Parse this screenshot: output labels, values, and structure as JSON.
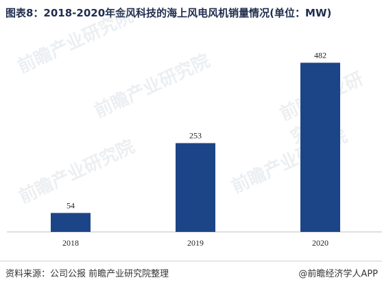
{
  "title": "图表8：2018-2020年金风科技的海上风电风机销量情况(单位：MW)",
  "footer": {
    "source": "资料来源：公司公报 前瞻产业研究院整理",
    "brand": "@前瞻经济学人APP"
  },
  "colors": {
    "bar": "#1c4587",
    "axis": "#bfbfbf",
    "label": "#222222"
  },
  "chart_data": {
    "type": "bar",
    "title": "图表8：2018-2020年金风科技的海上风电风机销量情况(单位：MW)",
    "categories": [
      "2018",
      "2019",
      "2020"
    ],
    "values": [
      54,
      253,
      482
    ],
    "xlabel": "",
    "ylabel": "",
    "ylim": [
      0,
      520
    ],
    "grid": false,
    "legend": "none"
  }
}
